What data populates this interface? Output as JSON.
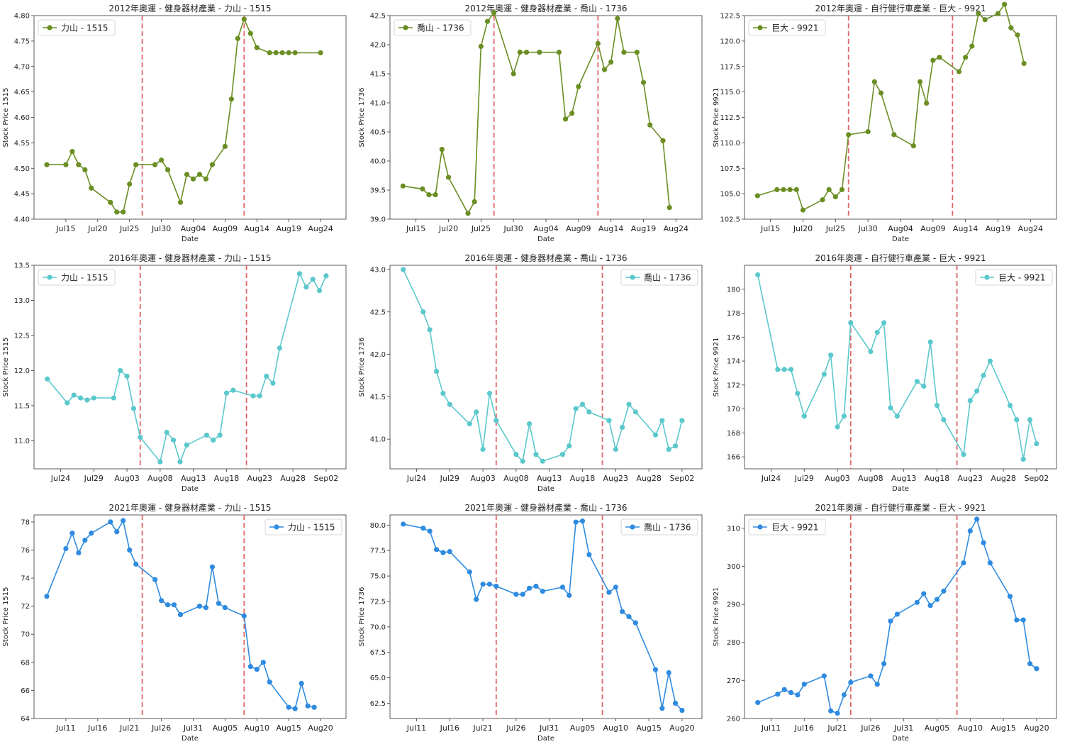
{
  "figure": {
    "colors": {
      "2012": "#6b8e23",
      "2016": "#5bc8cc",
      "2021": "#2f8be0",
      "vline": "#e06666"
    }
  },
  "chart_data": [
    {
      "type": "line",
      "title": "2012年奧運 - 健身器材產業 - 力山 - 1515",
      "series_name": "力山 - 1515",
      "xlabel": "Date",
      "ylabel": "Stock Price 1515",
      "legend": "top-left",
      "color_key": "2012",
      "xlim": [
        -2,
        47
      ],
      "ylim": [
        4.4,
        4.8
      ],
      "yticks": [
        4.4,
        4.45,
        4.5,
        4.55,
        4.6,
        4.65,
        4.7,
        4.75,
        4.8
      ],
      "ytick_labels": [
        "4.40",
        "4.45",
        "4.50",
        "4.55",
        "4.60",
        "4.65",
        "4.70",
        "4.75",
        "4.80"
      ],
      "xticks": [
        {
          "x": 3,
          "label": "Jul15"
        },
        {
          "x": 8,
          "label": "Jul20"
        },
        {
          "x": 13,
          "label": "Jul25"
        },
        {
          "x": 18,
          "label": "Jul30"
        },
        {
          "x": 23,
          "label": "Aug04"
        },
        {
          "x": 28,
          "label": "Aug09"
        },
        {
          "x": 33,
          "label": "Aug14"
        },
        {
          "x": 38,
          "label": "Aug19"
        },
        {
          "x": 43,
          "label": "Aug24"
        }
      ],
      "vlines": [
        15,
        31
      ],
      "x": [
        0,
        3,
        4,
        5,
        6,
        7,
        10,
        11,
        12,
        13,
        14,
        17,
        18,
        19,
        21,
        22,
        23,
        24,
        25,
        26,
        28,
        29,
        30,
        31,
        32,
        33,
        35,
        36,
        37,
        38,
        39,
        43
      ],
      "y": [
        4.507,
        4.507,
        4.533,
        4.507,
        4.497,
        4.461,
        4.433,
        4.414,
        4.414,
        4.469,
        4.507,
        4.507,
        4.516,
        4.497,
        4.433,
        4.488,
        4.479,
        4.488,
        4.479,
        4.507,
        4.543,
        4.636,
        4.755,
        4.793,
        4.765,
        4.737,
        4.727,
        4.727,
        4.727,
        4.727,
        4.727,
        4.727
      ]
    },
    {
      "type": "line",
      "title": "2012年奧運 - 健身器材產業 - 喬山 - 1736",
      "series_name": "喬山 - 1736",
      "xlabel": "Date",
      "ylabel": "Stock Price 1736",
      "legend": "top-left",
      "color_key": "2012",
      "xlim": [
        -2,
        46
      ],
      "ylim": [
        39.0,
        42.5
      ],
      "yticks": [
        39.0,
        39.5,
        40.0,
        40.5,
        41.0,
        41.5,
        42.0,
        42.5
      ],
      "ytick_labels": [
        "39.0",
        "39.5",
        "40.0",
        "40.5",
        "41.0",
        "41.5",
        "42.0",
        "42.5"
      ],
      "xticks": [
        {
          "x": 2,
          "label": "Jul15"
        },
        {
          "x": 7,
          "label": "Jul20"
        },
        {
          "x": 12,
          "label": "Jul25"
        },
        {
          "x": 17,
          "label": "Jul30"
        },
        {
          "x": 22,
          "label": "Aug04"
        },
        {
          "x": 27,
          "label": "Aug09"
        },
        {
          "x": 32,
          "label": "Aug14"
        },
        {
          "x": 37,
          "label": "Aug19"
        },
        {
          "x": 42,
          "label": "Aug24"
        }
      ],
      "vlines": [
        14,
        30
      ],
      "x": [
        0,
        3,
        4,
        5,
        6,
        7,
        10,
        11,
        12,
        13,
        14,
        17,
        18,
        19,
        21,
        24,
        25,
        26,
        27,
        30,
        31,
        32,
        33,
        34,
        36,
        37,
        38,
        40,
        41
      ],
      "y": [
        39.57,
        39.52,
        39.42,
        39.42,
        40.2,
        39.72,
        39.1,
        39.3,
        41.97,
        42.4,
        42.55,
        41.5,
        41.87,
        41.87,
        41.87,
        41.87,
        40.72,
        40.82,
        41.28,
        42.02,
        41.57,
        41.7,
        42.45,
        41.87,
        41.87,
        41.35,
        40.62,
        40.35,
        39.2
      ]
    },
    {
      "type": "line",
      "title": "2012年奧運 - 自行健行車產業 - 巨大 - 9921",
      "series_name": "巨大 - 9921",
      "xlabel": "Date",
      "ylabel": "Stock Price 9921",
      "legend": "top-left",
      "color_key": "2012",
      "xlim": [
        -2,
        46
      ],
      "ylim": [
        102.5,
        122.5
      ],
      "yticks": [
        102.5,
        105.0,
        107.5,
        110.0,
        112.5,
        115.0,
        117.5,
        120.0,
        122.5
      ],
      "ytick_labels": [
        "102.5",
        "105.0",
        "107.5",
        "110.0",
        "112.5",
        "115.0",
        "117.5",
        "120.0",
        "122.5"
      ],
      "xticks": [
        {
          "x": 2,
          "label": "Jul15"
        },
        {
          "x": 7,
          "label": "Jul20"
        },
        {
          "x": 12,
          "label": "Jul25"
        },
        {
          "x": 17,
          "label": "Jul30"
        },
        {
          "x": 22,
          "label": "Aug04"
        },
        {
          "x": 27,
          "label": "Aug09"
        },
        {
          "x": 32,
          "label": "Aug14"
        },
        {
          "x": 37,
          "label": "Aug19"
        },
        {
          "x": 42,
          "label": "Aug24"
        }
      ],
      "vlines": [
        14,
        30
      ],
      "x": [
        0,
        3,
        4,
        5,
        6,
        7,
        10,
        11,
        12,
        13,
        14,
        17,
        18,
        19,
        21,
        24,
        25,
        26,
        27,
        28,
        31,
        32,
        33,
        34,
        35,
        37,
        38,
        39,
        40,
        41
      ],
      "y": [
        104.8,
        105.4,
        105.4,
        105.4,
        105.4,
        103.4,
        104.4,
        105.4,
        104.7,
        105.4,
        110.8,
        111.1,
        116.0,
        114.9,
        110.8,
        109.7,
        116.0,
        113.9,
        118.1,
        118.4,
        117.0,
        118.4,
        119.5,
        122.7,
        122.1,
        122.7,
        123.6,
        121.3,
        120.6,
        117.8
      ]
    },
    {
      "type": "line",
      "title": "2016年奧運 - 健身器材產業 - 力山 - 1515",
      "series_name": "力山 - 1515",
      "xlabel": "Date",
      "ylabel": "Stock Price 1515",
      "legend": "top-left",
      "color_key": "2016",
      "xlim": [
        -2,
        45
      ],
      "ylim": [
        10.6,
        13.5
      ],
      "yticks": [
        11.0,
        11.5,
        12.0,
        12.5,
        13.0,
        13.5
      ],
      "ytick_labels": [
        "11.0",
        "11.5",
        "12.0",
        "12.5",
        "13.0",
        "13.5"
      ],
      "xticks": [
        {
          "x": 2,
          "label": "Jul24"
        },
        {
          "x": 7,
          "label": "Jul29"
        },
        {
          "x": 12,
          "label": "Aug03"
        },
        {
          "x": 17,
          "label": "Aug08"
        },
        {
          "x": 22,
          "label": "Aug13"
        },
        {
          "x": 27,
          "label": "Aug18"
        },
        {
          "x": 32,
          "label": "Aug23"
        },
        {
          "x": 37,
          "label": "Aug28"
        },
        {
          "x": 42,
          "label": "Sep02"
        }
      ],
      "vlines": [
        14,
        30
      ],
      "x": [
        0,
        3,
        4,
        5,
        6,
        7,
        10,
        11,
        12,
        13,
        14,
        17,
        18,
        19,
        20,
        21,
        24,
        25,
        26,
        27,
        28,
        31,
        32,
        33,
        34,
        35,
        38,
        39,
        40,
        41,
        42
      ],
      "y": [
        11.88,
        11.54,
        11.65,
        11.61,
        11.58,
        11.61,
        11.61,
        12.0,
        11.92,
        11.46,
        11.05,
        10.7,
        11.12,
        11.01,
        10.7,
        10.94,
        11.08,
        11.01,
        11.08,
        11.68,
        11.72,
        11.64,
        11.64,
        11.92,
        11.82,
        12.32,
        13.38,
        13.19,
        13.3,
        13.14,
        13.35
      ]
    },
    {
      "type": "line",
      "title": "2016年奧運 - 健身器材產業 - 喬山 - 1736",
      "series_name": "喬山 - 1736",
      "xlabel": "Date",
      "ylabel": "Stock Price 1736",
      "legend": "top-right",
      "color_key": "2016",
      "xlim": [
        -2,
        45
      ],
      "ylim": [
        40.65,
        43.05
      ],
      "yticks": [
        41.0,
        41.5,
        42.0,
        42.5,
        43.0
      ],
      "ytick_labels": [
        "41.0",
        "41.5",
        "42.0",
        "42.5",
        "43.0"
      ],
      "xticks": [
        {
          "x": 2,
          "label": "Jul24"
        },
        {
          "x": 7,
          "label": "Jul29"
        },
        {
          "x": 12,
          "label": "Aug03"
        },
        {
          "x": 17,
          "label": "Aug08"
        },
        {
          "x": 22,
          "label": "Aug13"
        },
        {
          "x": 27,
          "label": "Aug18"
        },
        {
          "x": 32,
          "label": "Aug23"
        },
        {
          "x": 37,
          "label": "Aug28"
        },
        {
          "x": 42,
          "label": "Sep02"
        }
      ],
      "vlines": [
        14,
        30
      ],
      "x": [
        0,
        3,
        4,
        5,
        6,
        7,
        10,
        11,
        12,
        13,
        14,
        17,
        18,
        19,
        20,
        21,
        24,
        25,
        26,
        27,
        28,
        31,
        32,
        33,
        34,
        35,
        38,
        39,
        40,
        41,
        42
      ],
      "y": [
        43.0,
        42.5,
        42.29,
        41.8,
        41.54,
        41.41,
        41.18,
        41.32,
        40.88,
        41.54,
        41.22,
        40.82,
        40.74,
        41.18,
        40.82,
        40.74,
        40.82,
        40.92,
        41.36,
        41.41,
        41.32,
        41.22,
        40.88,
        41.14,
        41.41,
        41.32,
        41.05,
        41.22,
        40.88,
        40.92,
        41.22
      ]
    },
    {
      "type": "line",
      "title": "2016年奧運 - 自行健行車產業 - 巨大 - 9921",
      "series_name": "巨大 - 9921",
      "xlabel": "Date",
      "ylabel": "Stock Price 9921",
      "legend": "top-right",
      "color_key": "2016",
      "xlim": [
        -2,
        45
      ],
      "ylim": [
        165,
        182
      ],
      "yticks": [
        166,
        168,
        170,
        172,
        174,
        176,
        178,
        180
      ],
      "ytick_labels": [
        "166",
        "168",
        "170",
        "172",
        "174",
        "176",
        "178",
        "180"
      ],
      "xticks": [
        {
          "x": 2,
          "label": "Jul24"
        },
        {
          "x": 7,
          "label": "Jul29"
        },
        {
          "x": 12,
          "label": "Aug03"
        },
        {
          "x": 17,
          "label": "Aug08"
        },
        {
          "x": 22,
          "label": "Aug13"
        },
        {
          "x": 27,
          "label": "Aug18"
        },
        {
          "x": 32,
          "label": "Aug23"
        },
        {
          "x": 37,
          "label": "Aug28"
        },
        {
          "x": 42,
          "label": "Sep02"
        }
      ],
      "vlines": [
        14,
        30
      ],
      "x": [
        0,
        3,
        4,
        5,
        6,
        7,
        10,
        11,
        12,
        13,
        14,
        17,
        18,
        19,
        20,
        21,
        24,
        25,
        26,
        27,
        28,
        31,
        32,
        33,
        34,
        35,
        38,
        39,
        40,
        41,
        42
      ],
      "y": [
        181.2,
        173.3,
        173.3,
        173.3,
        171.3,
        169.4,
        172.9,
        174.5,
        168.5,
        169.4,
        177.2,
        174.8,
        176.4,
        177.2,
        170.1,
        169.4,
        172.3,
        171.9,
        175.6,
        170.3,
        169.1,
        166.2,
        170.7,
        171.5,
        172.8,
        174.0,
        170.3,
        169.1,
        165.8,
        169.1,
        167.1
      ]
    },
    {
      "type": "line",
      "title": "2021年奧運 - 健身器材產業 - 力山 - 1515",
      "series_name": "力山 - 1515",
      "xlabel": "Date",
      "ylabel": "Stock Price 1515",
      "legend": "top-right",
      "color_key": "2021",
      "xlim": [
        -2,
        47
      ],
      "ylim": [
        64,
        78.5
      ],
      "yticks": [
        64,
        66,
        68,
        70,
        72,
        74,
        76,
        78
      ],
      "ytick_labels": [
        "64",
        "66",
        "68",
        "70",
        "72",
        "74",
        "76",
        "78"
      ],
      "xticks": [
        {
          "x": 3,
          "label": "Jul11"
        },
        {
          "x": 8,
          "label": "Jul16"
        },
        {
          "x": 13,
          "label": "Jul21"
        },
        {
          "x": 18,
          "label": "Jul26"
        },
        {
          "x": 23,
          "label": "Jul31"
        },
        {
          "x": 28,
          "label": "Aug05"
        },
        {
          "x": 33,
          "label": "Aug10"
        },
        {
          "x": 38,
          "label": "Aug15"
        },
        {
          "x": 43,
          "label": "Aug20"
        }
      ],
      "vlines": [
        15,
        31
      ],
      "x": [
        0,
        3,
        4,
        5,
        6,
        7,
        10,
        11,
        12,
        13,
        14,
        17,
        18,
        19,
        20,
        21,
        24,
        25,
        26,
        27,
        28,
        31,
        32,
        33,
        34,
        35,
        38,
        39,
        40,
        41,
        42
      ],
      "y": [
        72.7,
        76.1,
        77.2,
        75.8,
        76.7,
        77.2,
        78.0,
        77.3,
        78.1,
        76.0,
        75.0,
        73.9,
        72.4,
        72.1,
        72.1,
        71.4,
        72.0,
        71.9,
        74.8,
        72.2,
        71.9,
        71.3,
        67.7,
        67.5,
        68.0,
        66.6,
        64.8,
        64.7,
        66.5,
        64.9,
        64.8
      ]
    },
    {
      "type": "line",
      "title": "2021年奧運 - 健身器材產業 - 喬山 - 1736",
      "series_name": "喬山 - 1736",
      "xlabel": "Date",
      "ylabel": "Stock Price 1736",
      "legend": "top-right",
      "color_key": "2021",
      "xlim": [
        -2,
        45
      ],
      "ylim": [
        61,
        81
      ],
      "yticks": [
        62.5,
        65.0,
        67.5,
        70.0,
        72.5,
        75.0,
        77.5,
        80.0
      ],
      "ytick_labels": [
        "62.5",
        "65.0",
        "67.5",
        "70.0",
        "72.5",
        "75.0",
        "77.5",
        "80.0"
      ],
      "xticks": [
        {
          "x": 2,
          "label": "Jul11"
        },
        {
          "x": 7,
          "label": "Jul16"
        },
        {
          "x": 12,
          "label": "Jul21"
        },
        {
          "x": 17,
          "label": "Jul26"
        },
        {
          "x": 22,
          "label": "Jul31"
        },
        {
          "x": 27,
          "label": "Aug05"
        },
        {
          "x": 32,
          "label": "Aug10"
        },
        {
          "x": 37,
          "label": "Aug15"
        },
        {
          "x": 42,
          "label": "Aug20"
        }
      ],
      "vlines": [
        14,
        30
      ],
      "x": [
        0,
        3,
        4,
        5,
        6,
        7,
        10,
        11,
        12,
        13,
        14,
        17,
        18,
        19,
        20,
        21,
        24,
        25,
        26,
        27,
        28,
        31,
        32,
        33,
        34,
        35,
        38,
        39,
        40,
        41,
        42
      ],
      "y": [
        80.1,
        79.7,
        79.4,
        77.6,
        77.3,
        77.4,
        75.4,
        72.7,
        74.2,
        74.2,
        74.0,
        73.2,
        73.2,
        73.8,
        74.0,
        73.5,
        73.9,
        73.1,
        80.3,
        80.4,
        77.1,
        73.4,
        73.9,
        71.5,
        71.0,
        70.4,
        65.8,
        62.0,
        65.5,
        62.5,
        61.8
      ]
    },
    {
      "type": "line",
      "title": "2021年奧運 - 自行健行車產業 - 巨大 - 9921",
      "series_name": "巨大 - 9921",
      "xlabel": "Date",
      "ylabel": "Stock Price 9921",
      "legend": "top-left",
      "color_key": "2021",
      "xlim": [
        -2,
        45
      ],
      "ylim": [
        260,
        313.5
      ],
      "yticks": [
        260,
        270,
        280,
        290,
        300,
        310
      ],
      "ytick_labels": [
        "260",
        "270",
        "280",
        "290",
        "300",
        "310"
      ],
      "xticks": [
        {
          "x": 2,
          "label": "Jul11"
        },
        {
          "x": 7,
          "label": "Jul16"
        },
        {
          "x": 12,
          "label": "Jul21"
        },
        {
          "x": 17,
          "label": "Jul26"
        },
        {
          "x": 22,
          "label": "Jul31"
        },
        {
          "x": 27,
          "label": "Aug05"
        },
        {
          "x": 32,
          "label": "Aug10"
        },
        {
          "x": 37,
          "label": "Aug15"
        },
        {
          "x": 42,
          "label": "Aug20"
        }
      ],
      "vlines": [
        14,
        30
      ],
      "x": [
        0,
        3,
        4,
        5,
        6,
        7,
        10,
        11,
        12,
        13,
        14,
        17,
        18,
        19,
        20,
        21,
        24,
        25,
        26,
        27,
        28,
        31,
        32,
        33,
        34,
        35,
        38,
        39,
        40,
        41,
        42
      ],
      "y": [
        264.2,
        266.4,
        267.6,
        266.8,
        266.2,
        269.0,
        271.2,
        262.0,
        261.4,
        266.2,
        269.5,
        271.2,
        269.0,
        274.4,
        285.6,
        287.4,
        290.5,
        292.8,
        289.7,
        291.3,
        293.5,
        300.9,
        309.3,
        312.4,
        306.2,
        300.9,
        292.1,
        285.9,
        285.9,
        274.4,
        273.1
      ]
    }
  ]
}
